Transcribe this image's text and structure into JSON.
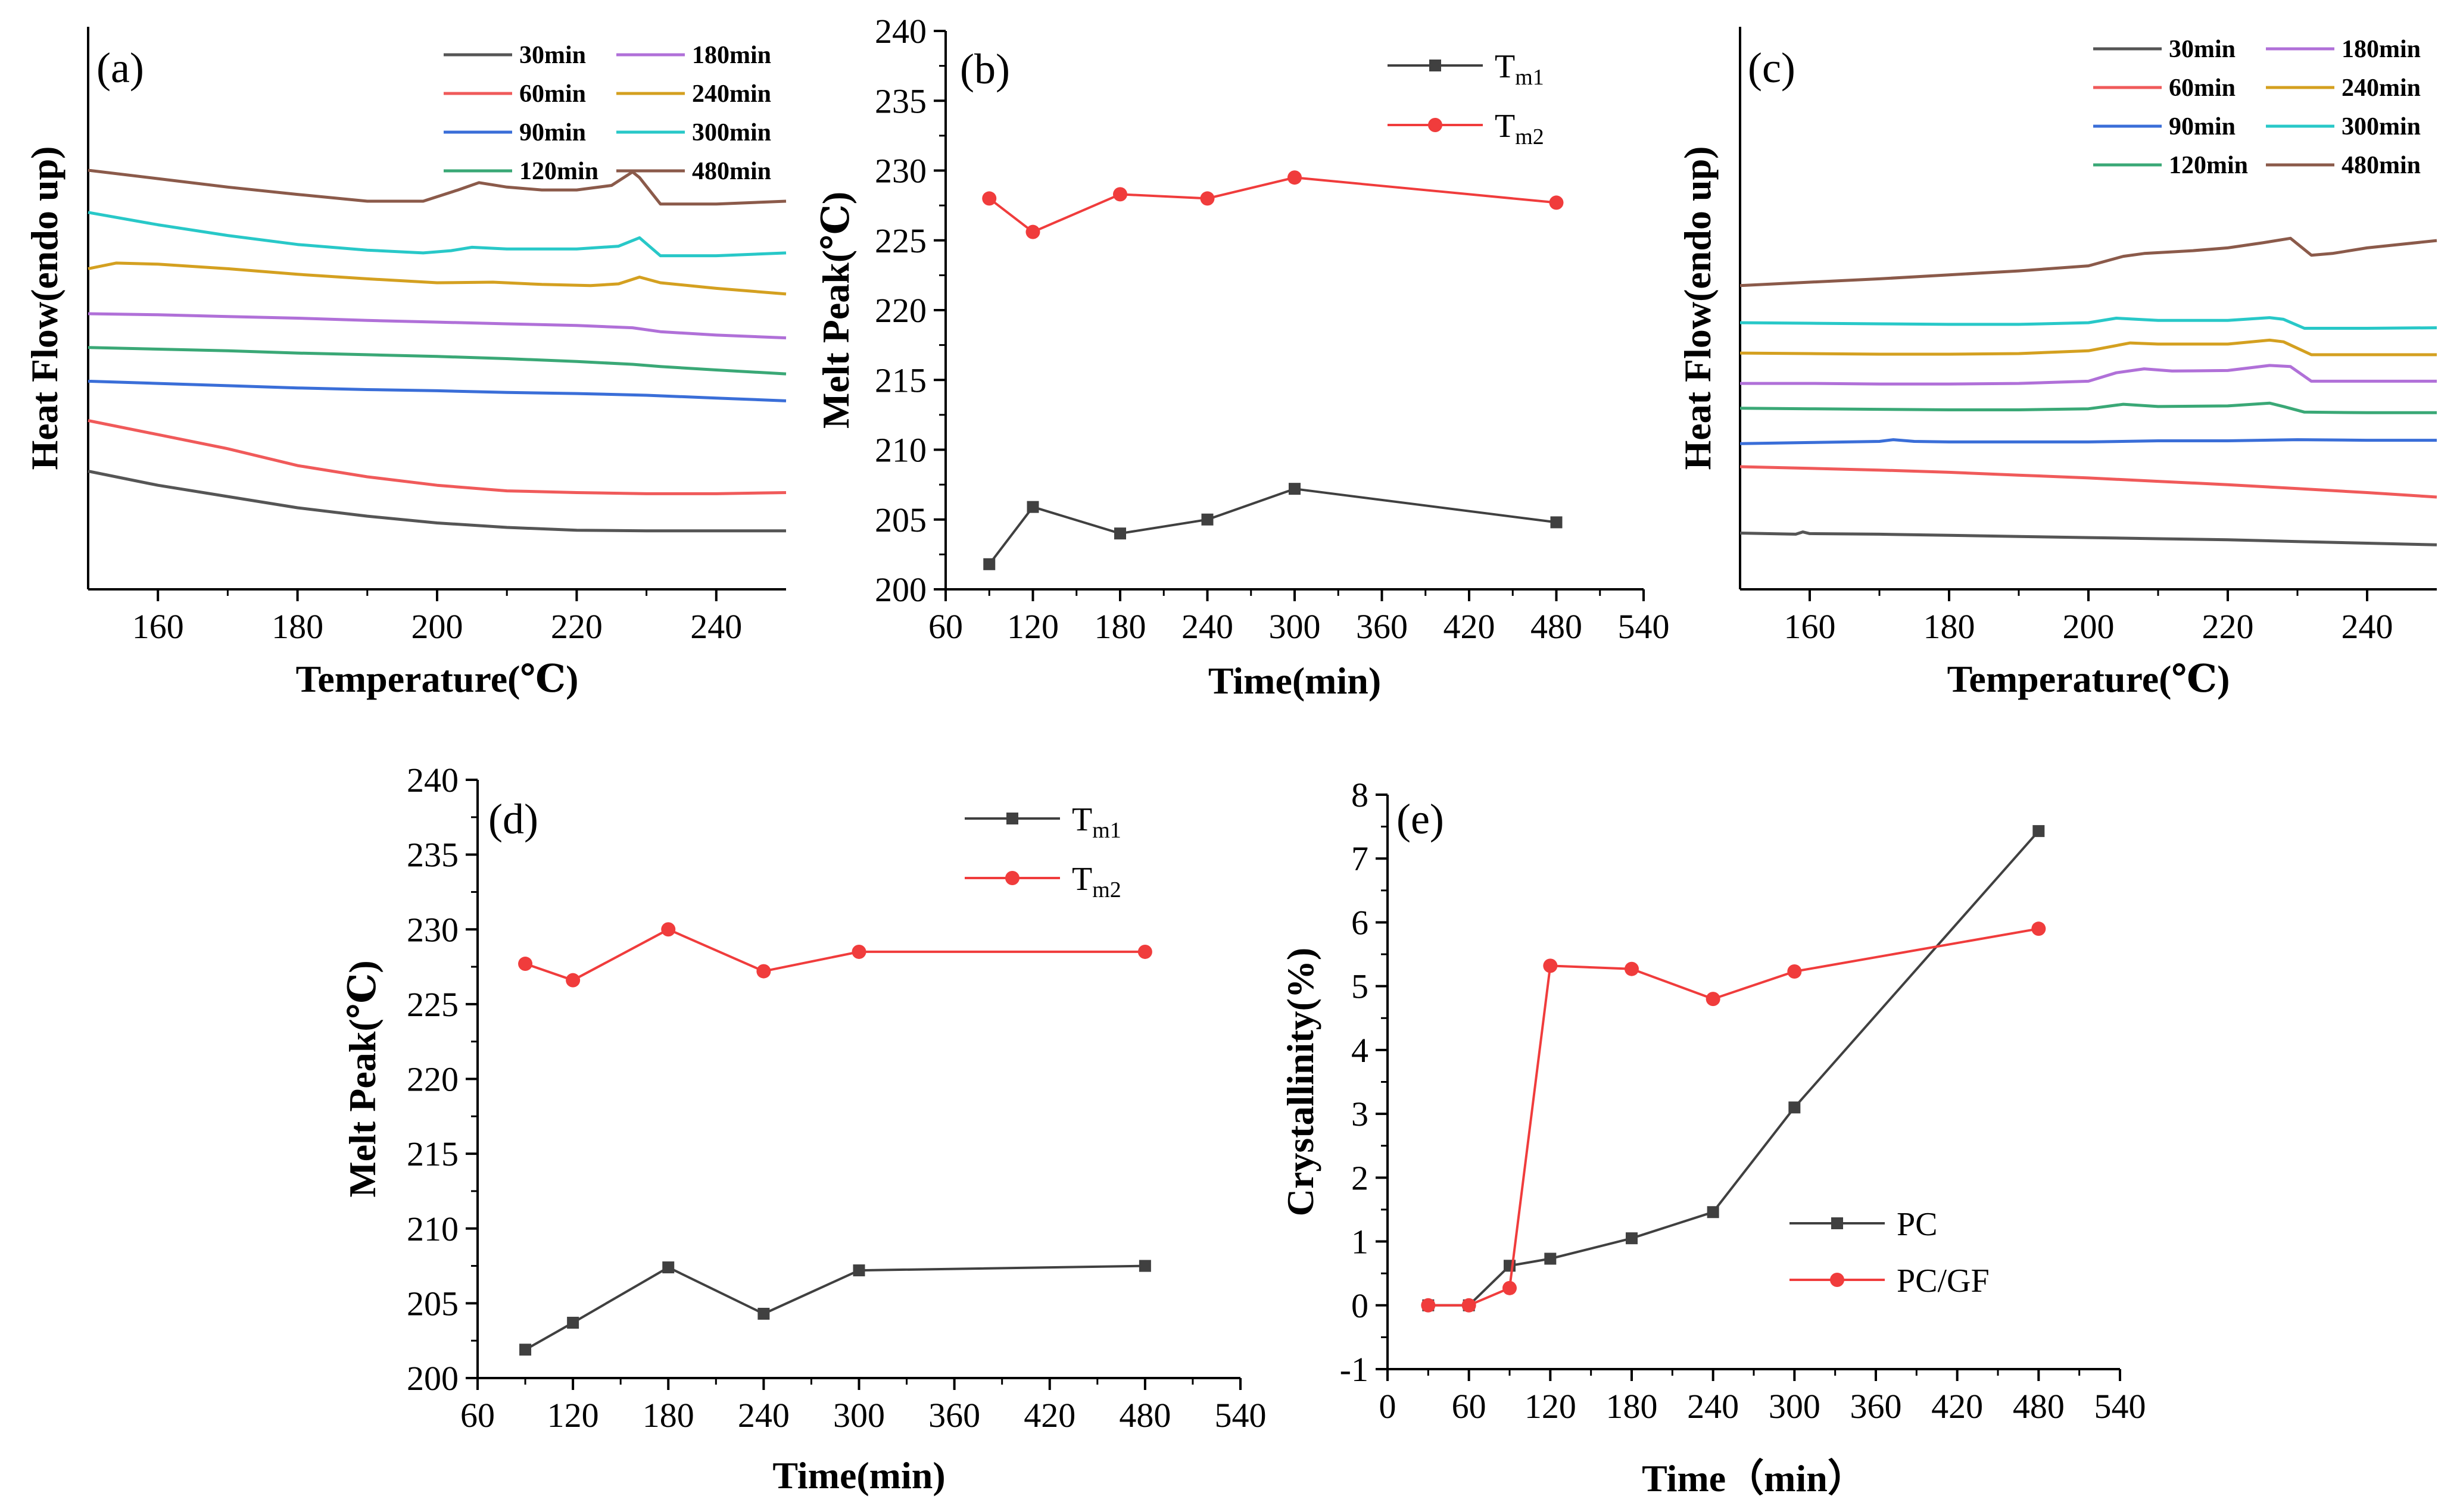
{
  "chart_data": [
    {
      "panel": "(a)",
      "type": "line",
      "xlabel": "Temperature(℃)",
      "ylabel": "Heat Flow(endo up)",
      "xlim": [
        150,
        250
      ],
      "xticks": [
        160,
        180,
        200,
        220,
        240
      ],
      "ylim": [
        0,
        100
      ],
      "yticks_shown": false,
      "legend_position": "top-right",
      "legend_columns": 2,
      "series": [
        {
          "name": "30min",
          "color": "#555555",
          "x": [
            150,
            160,
            170,
            180,
            190,
            200,
            210,
            220,
            230,
            240,
            250
          ],
          "y": [
            21,
            18.5,
            16.5,
            14.5,
            13,
            11.8,
            11,
            10.5,
            10.4,
            10.4,
            10.4
          ]
        },
        {
          "name": "60min",
          "color": "#f05a5a",
          "x": [
            150,
            160,
            170,
            180,
            190,
            200,
            210,
            220,
            230,
            240,
            250
          ],
          "y": [
            30,
            27.5,
            25,
            22,
            20,
            18.5,
            17.5,
            17.2,
            17,
            17,
            17.2
          ]
        },
        {
          "name": "90min",
          "color": "#3a6ed8",
          "x": [
            150,
            160,
            170,
            180,
            190,
            200,
            210,
            220,
            230,
            240,
            250
          ],
          "y": [
            37,
            36.6,
            36.2,
            35.8,
            35.5,
            35.3,
            35,
            34.8,
            34.5,
            34,
            33.5
          ]
        },
        {
          "name": "120min",
          "color": "#3aa876",
          "x": [
            150,
            160,
            170,
            180,
            190,
            200,
            210,
            220,
            228,
            232,
            240,
            250
          ],
          "y": [
            43,
            42.7,
            42.4,
            42,
            41.7,
            41.4,
            41,
            40.5,
            40,
            39.6,
            39,
            38.3
          ]
        },
        {
          "name": "180min",
          "color": "#b070d8",
          "x": [
            150,
            160,
            170,
            180,
            190,
            200,
            210,
            220,
            228,
            232,
            240,
            250
          ],
          "y": [
            49,
            48.8,
            48.5,
            48.2,
            47.8,
            47.5,
            47.2,
            46.9,
            46.5,
            45.8,
            45.2,
            44.7
          ]
        },
        {
          "name": "240min",
          "color": "#d4a020",
          "x": [
            150,
            154,
            160,
            170,
            180,
            190,
            200,
            208,
            215,
            222,
            226,
            229,
            232,
            240,
            250
          ],
          "y": [
            57,
            58,
            57.8,
            57,
            56,
            55.2,
            54.5,
            54.6,
            54.2,
            54,
            54.3,
            55.5,
            54.5,
            53.5,
            52.5
          ]
        },
        {
          "name": "300min",
          "color": "#28c8c8",
          "x": [
            150,
            160,
            170,
            180,
            190,
            198,
            202,
            205,
            210,
            220,
            226,
            229,
            232,
            240,
            250
          ],
          "y": [
            67,
            64.8,
            62.9,
            61.3,
            60.3,
            59.8,
            60.2,
            60.8,
            60.5,
            60.5,
            61,
            62.5,
            59.3,
            59.3,
            59.8
          ]
        },
        {
          "name": "480min",
          "color": "#8b5a4a",
          "x": [
            150,
            160,
            170,
            180,
            190,
            198,
            203,
            206,
            210,
            215,
            220,
            225,
            228,
            229,
            232,
            240,
            250
          ],
          "y": [
            74.5,
            73,
            71.5,
            70.2,
            69,
            69,
            71,
            72.3,
            71.5,
            71,
            71,
            71.8,
            74.2,
            73.2,
            68.5,
            68.5,
            69
          ]
        }
      ]
    },
    {
      "panel": "(b)",
      "type": "line",
      "xlabel": "Time(min)",
      "ylabel": "Melt Peak(℃)",
      "xlim": [
        60,
        540
      ],
      "ylim": [
        200,
        240
      ],
      "xticks": [
        60,
        120,
        180,
        240,
        300,
        360,
        420,
        480,
        540
      ],
      "yticks": [
        200,
        205,
        210,
        215,
        220,
        225,
        230,
        235,
        240
      ],
      "legend_position": "top-right",
      "series": [
        {
          "name": "T",
          "sub": "m1",
          "marker": "square",
          "color": "#404040",
          "x": [
            90,
            120,
            180,
            240,
            300,
            480
          ],
          "y": [
            201.8,
            205.9,
            204,
            205,
            207.2,
            204.8
          ]
        },
        {
          "name": "T",
          "sub": "m2",
          "marker": "circle",
          "color": "#f03c3c",
          "x": [
            90,
            120,
            180,
            240,
            300,
            480
          ],
          "y": [
            228,
            225.6,
            228.3,
            228,
            229.5,
            227.7
          ]
        }
      ]
    },
    {
      "panel": "(c)",
      "type": "line",
      "xlabel": "Temperature(℃)",
      "ylabel": "Heat Flow(endo up)",
      "xlim": [
        150,
        250
      ],
      "xticks": [
        160,
        180,
        200,
        220,
        240
      ],
      "ylim": [
        0,
        100
      ],
      "yticks_shown": false,
      "legend_position": "top-right",
      "legend_columns": 2,
      "series": [
        {
          "name": "30min",
          "color": "#555555",
          "x": [
            150,
            158,
            159,
            160,
            170,
            180,
            190,
            200,
            210,
            220,
            230,
            240,
            250
          ],
          "y": [
            10,
            9.8,
            10.2,
            9.9,
            9.8,
            9.6,
            9.4,
            9.2,
            9,
            8.8,
            8.5,
            8.2,
            7.9
          ]
        },
        {
          "name": "60min",
          "color": "#f05a5a",
          "x": [
            150,
            160,
            170,
            180,
            190,
            200,
            210,
            220,
            230,
            240,
            250
          ],
          "y": [
            21.8,
            21.5,
            21.2,
            20.8,
            20.3,
            19.8,
            19.2,
            18.6,
            17.9,
            17.2,
            16.4
          ]
        },
        {
          "name": "90min",
          "color": "#3a6ed8",
          "x": [
            150,
            160,
            170,
            172,
            175,
            180,
            190,
            200,
            210,
            220,
            230,
            240,
            250
          ],
          "y": [
            25.9,
            26.1,
            26.3,
            26.6,
            26.3,
            26.2,
            26.2,
            26.2,
            26.4,
            26.4,
            26.6,
            26.5,
            26.5
          ]
        },
        {
          "name": "120min",
          "color": "#3aa876",
          "x": [
            150,
            160,
            170,
            180,
            190,
            200,
            205,
            210,
            220,
            226,
            228,
            231,
            240,
            250
          ],
          "y": [
            32.2,
            32.1,
            32,
            31.9,
            31.9,
            32.1,
            32.9,
            32.5,
            32.6,
            33.1,
            32.5,
            31.5,
            31.4,
            31.4
          ]
        },
        {
          "name": "180min",
          "color": "#b070d8",
          "x": [
            150,
            160,
            170,
            180,
            190,
            200,
            204,
            208,
            212,
            220,
            226,
            229,
            232,
            240,
            250
          ],
          "y": [
            36.6,
            36.6,
            36.5,
            36.5,
            36.6,
            37,
            38.5,
            39.2,
            38.8,
            38.9,
            39.8,
            39.6,
            37,
            37,
            37
          ]
        },
        {
          "name": "240min",
          "color": "#d4a020",
          "x": [
            150,
            160,
            170,
            180,
            190,
            200,
            206,
            210,
            220,
            226,
            228,
            232,
            240,
            250
          ],
          "y": [
            42,
            41.9,
            41.8,
            41.8,
            41.9,
            42.4,
            43.8,
            43.6,
            43.6,
            44.3,
            44,
            41.7,
            41.7,
            41.7
          ]
        },
        {
          "name": "300min",
          "color": "#28c8c8",
          "x": [
            150,
            160,
            170,
            180,
            190,
            200,
            204,
            210,
            220,
            226,
            228,
            231,
            240,
            250
          ],
          "y": [
            47.4,
            47.3,
            47.2,
            47.1,
            47.1,
            47.4,
            48.2,
            47.8,
            47.8,
            48.3,
            48,
            46.4,
            46.4,
            46.5
          ]
        },
        {
          "name": "480min",
          "color": "#8b5a4a",
          "x": [
            150,
            160,
            170,
            180,
            190,
            200,
            205,
            208,
            215,
            220,
            225,
            229,
            232,
            235,
            240,
            250
          ],
          "y": [
            54,
            54.6,
            55.2,
            55.9,
            56.6,
            57.5,
            59.2,
            59.7,
            60.2,
            60.7,
            61.6,
            62.4,
            59.4,
            59.7,
            60.7,
            62
          ]
        }
      ]
    },
    {
      "panel": "(d)",
      "type": "line",
      "xlabel": "Time(min)",
      "ylabel": "Melt Peak(℃)",
      "xlim": [
        60,
        540
      ],
      "ylim": [
        200,
        240
      ],
      "xticks": [
        60,
        120,
        180,
        240,
        300,
        360,
        420,
        480,
        540
      ],
      "yticks": [
        200,
        205,
        210,
        215,
        220,
        225,
        230,
        235,
        240
      ],
      "legend_position": "top-right",
      "series": [
        {
          "name": "T",
          "sub": "m1",
          "marker": "square",
          "color": "#404040",
          "x": [
            90,
            120,
            180,
            240,
            300,
            480
          ],
          "y": [
            201.9,
            203.7,
            207.4,
            204.3,
            207.2,
            207.5
          ]
        },
        {
          "name": "T",
          "sub": "m2",
          "marker": "circle",
          "color": "#f03c3c",
          "x": [
            90,
            120,
            180,
            240,
            300,
            480
          ],
          "y": [
            227.7,
            226.6,
            230,
            227.2,
            228.5,
            228.5
          ]
        }
      ]
    },
    {
      "panel": "(e)",
      "type": "line",
      "xlabel": "Time（min）",
      "ylabel": "Crystallinity(%)",
      "xlim": [
        0,
        540
      ],
      "ylim": [
        -1,
        8
      ],
      "xticks": [
        0,
        60,
        120,
        180,
        240,
        300,
        360,
        420,
        480,
        540
      ],
      "yticks": [
        -1,
        0,
        1,
        2,
        3,
        4,
        5,
        6,
        7,
        8
      ],
      "legend_position": "bottom-right",
      "series": [
        {
          "name": "PC",
          "marker": "square",
          "color": "#404040",
          "x": [
            30,
            60,
            90,
            120,
            180,
            240,
            300,
            480
          ],
          "y": [
            0,
            0,
            0.62,
            0.73,
            1.05,
            1.46,
            3.1,
            7.43
          ]
        },
        {
          "name": "PC/GF",
          "marker": "circle",
          "color": "#f03c3c",
          "x": [
            30,
            60,
            90,
            120,
            180,
            240,
            300,
            480
          ],
          "y": [
            0,
            0,
            0.27,
            5.32,
            5.27,
            4.8,
            5.23,
            5.9
          ]
        }
      ]
    }
  ]
}
